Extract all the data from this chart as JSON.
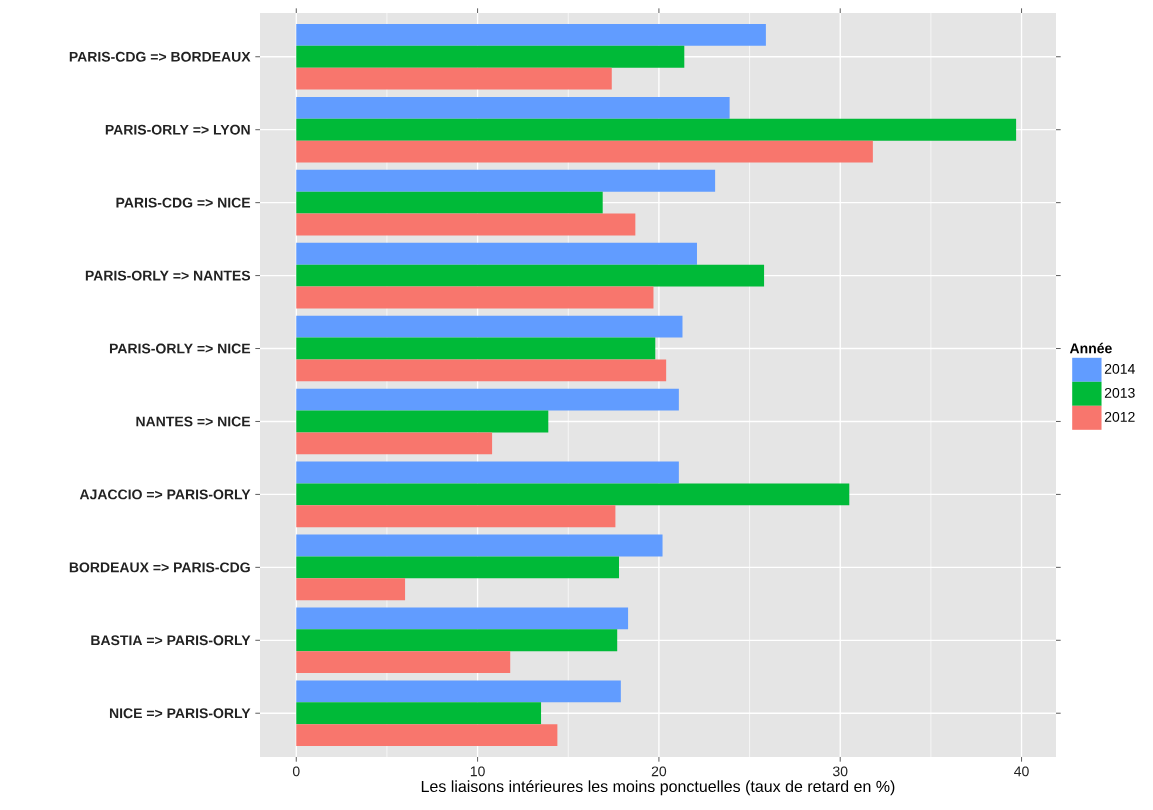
{
  "chart_data": {
    "type": "bar",
    "orientation": "horizontal",
    "xlabel": "Les liaisons intérieures les moins ponctuelles (taux de retard en %)",
    "legend_title": "Année",
    "categories": [
      "PARIS-CDG  =>  BORDEAUX",
      "PARIS-ORLY  =>  LYON",
      "PARIS-CDG  =>  NICE",
      "PARIS-ORLY  =>  NANTES",
      "PARIS-ORLY  =>  NICE",
      "NANTES  =>  NICE",
      "AJACCIO  =>  PARIS-ORLY",
      "BORDEAUX  =>  PARIS-CDG",
      "BASTIA  =>  PARIS-ORLY",
      "NICE  =>  PARIS-ORLY"
    ],
    "series": [
      {
        "name": "2014",
        "color": "#619cff",
        "values": [
          25.9,
          23.9,
          23.1,
          22.1,
          21.3,
          21.1,
          21.1,
          20.2,
          18.3,
          17.9
        ]
      },
      {
        "name": "2013",
        "color": "#00ba38",
        "values": [
          21.4,
          39.7,
          16.9,
          25.8,
          19.8,
          13.9,
          30.5,
          17.8,
          17.7,
          13.5
        ]
      },
      {
        "name": "2012",
        "color": "#f8766d",
        "values": [
          17.4,
          31.8,
          18.7,
          19.7,
          20.4,
          10.8,
          17.6,
          6.0,
          11.8,
          14.4
        ]
      }
    ],
    "xlim": [
      -2,
      41.9
    ],
    "xticks": [
      0,
      {
        "value": 5,
        "label": null
      },
      10,
      {
        "value": 15,
        "label": null
      },
      20,
      {
        "value": 25,
        "label": null
      },
      30,
      {
        "value": 35,
        "label": null
      },
      40
    ],
    "grid": true,
    "legend": "right"
  }
}
